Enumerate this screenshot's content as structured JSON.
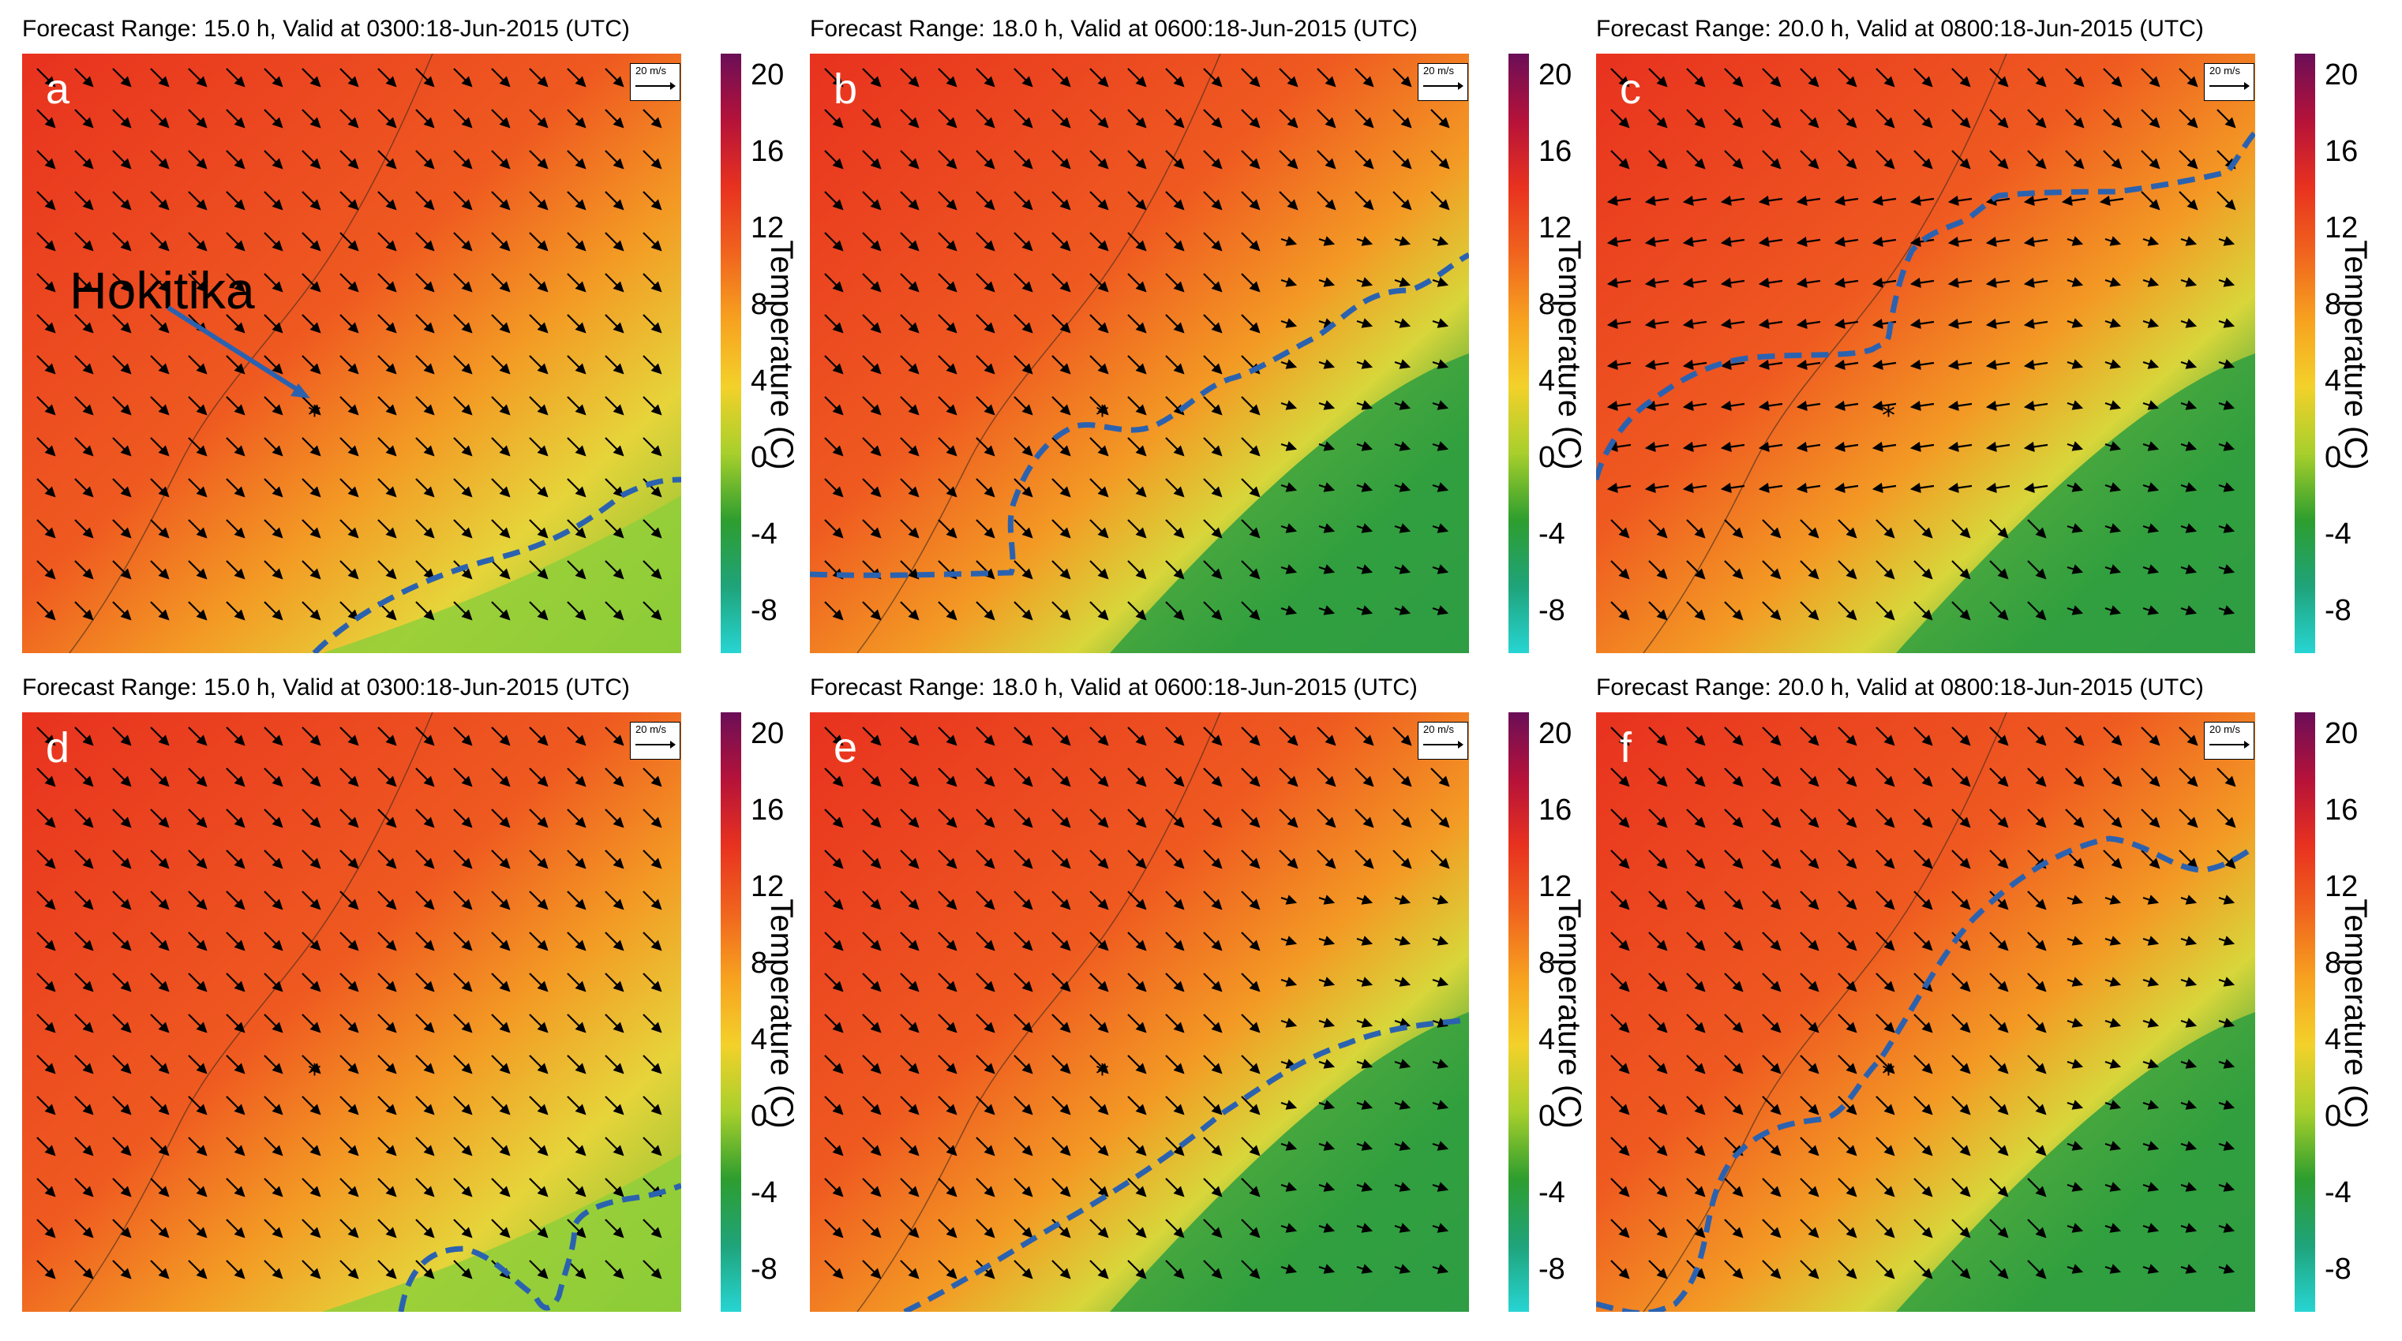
{
  "panels": [
    {
      "label": "a",
      "title": "Forecast Range: 15.0 h, Valid at 0300:18-Jun-2015  (UTC)"
    },
    {
      "label": "b",
      "title": "Forecast Range: 18.0 h, Valid at 0600:18-Jun-2015  (UTC)"
    },
    {
      "label": "c",
      "title": "Forecast Range: 20.0 h, Valid at 0800:18-Jun-2015  (UTC)"
    },
    {
      "label": "d",
      "title": "Forecast Range: 15.0 h, Valid at 0300:18-Jun-2015  (UTC)"
    },
    {
      "label": "e",
      "title": "Forecast Range: 18.0 h, Valid at 0600:18-Jun-2015  (UTC)"
    },
    {
      "label": "f",
      "title": "Forecast Range: 20.0 h, Valid at 0800:18-Jun-2015  (UTC)"
    }
  ],
  "annotation": {
    "place": "Hokitika",
    "marker": "*"
  },
  "wind_scale": {
    "label": "20 m/s"
  },
  "colorbar": {
    "label": "Temperature (C)",
    "ticks": [
      "20",
      "16",
      "12",
      "8",
      "4",
      "0",
      "-4",
      "-8"
    ],
    "colors": [
      "#6b0e57",
      "#b5123a",
      "#e8321f",
      "#f0641e",
      "#f7a21f",
      "#f3d12a",
      "#a8cf2c",
      "#2e9e2e",
      "#1fa37a",
      "#27d5d3"
    ]
  }
}
